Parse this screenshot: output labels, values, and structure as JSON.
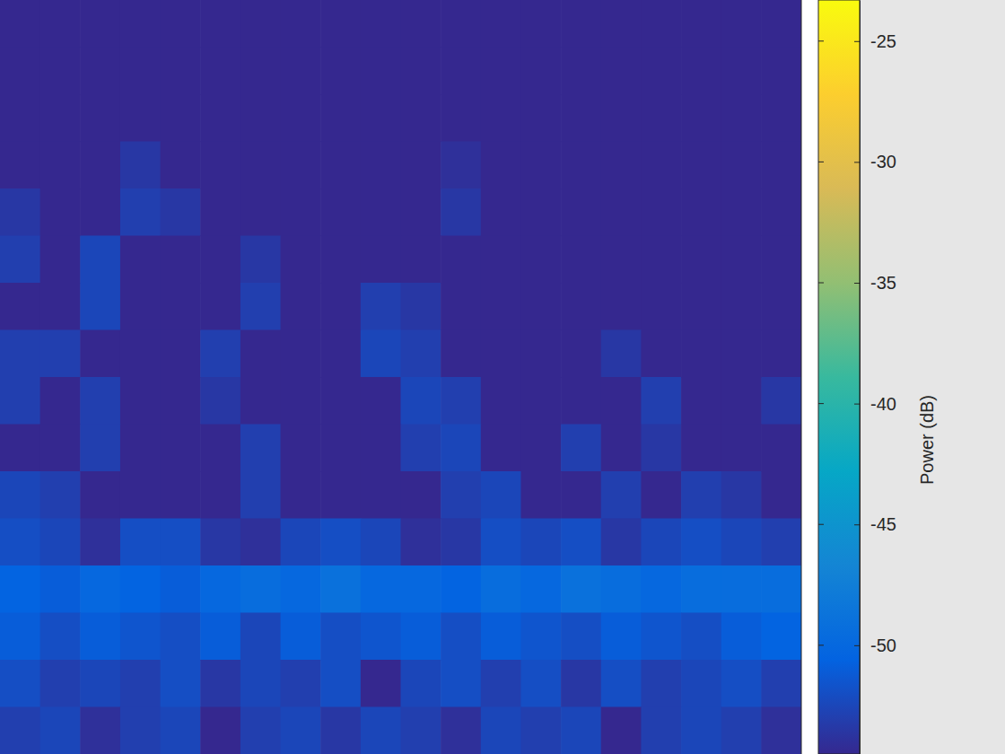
{
  "chart_data": {
    "type": "heatmap",
    "tick_labels": false,
    "colorbar": {
      "label": "Power (dB)",
      "range": [
        -54.5,
        -23.3
      ],
      "ticks": [
        -25,
        -30,
        -35,
        -40,
        -45,
        -50
      ]
    },
    "z": [
      [
        -54.5,
        -54.5,
        -54.5,
        -54.5,
        -54.5,
        -54.5,
        -54.5,
        -54.5,
        -54.5,
        -54.5,
        -54.5,
        -54.5,
        -54.5,
        -54.5,
        -54.5,
        -54.5,
        -54.5,
        -54.5,
        -54.5,
        -54.5
      ],
      [
        -54.5,
        -54.5,
        -54.5,
        -54.5,
        -54.5,
        -54.5,
        -54.5,
        -54.5,
        -54.5,
        -54.5,
        -54.5,
        -54.5,
        -54.5,
        -54.5,
        -54.5,
        -54.5,
        -54.5,
        -54.5,
        -54.5,
        -54.5
      ],
      [
        -54.5,
        -54.5,
        -54.5,
        -54.5,
        -54.5,
        -54.5,
        -54.5,
        -54.5,
        -54.5,
        -54.5,
        -54.5,
        -54.5,
        -54.5,
        -54.5,
        -54.5,
        -54.5,
        -54.5,
        -54.5,
        -54.5,
        -54.5
      ],
      [
        -54.5,
        -54.5,
        -54.5,
        -53.5,
        -54.5,
        -54.5,
        -54.5,
        -54.5,
        -54.5,
        -54.5,
        -54.5,
        -54,
        -54.5,
        -54.5,
        -54.5,
        -54.5,
        -54.5,
        -54.5,
        -54.5,
        -54.5
      ],
      [
        -53.5,
        -54.5,
        -54.5,
        -53,
        -53.5,
        -54.5,
        -54.5,
        -54.5,
        -54.5,
        -54.5,
        -54.5,
        -53.5,
        -54.5,
        -54.5,
        -54.5,
        -54.5,
        -54.5,
        -54.5,
        -54.5,
        -54.5
      ],
      [
        -53,
        -54.5,
        -52.5,
        -54.5,
        -54.5,
        -54.5,
        -53.5,
        -54.5,
        -54.5,
        -54.5,
        -54.5,
        -54.5,
        -54.5,
        -54.5,
        -54.5,
        -54.5,
        -54.5,
        -54.5,
        -54.5,
        -54.5
      ],
      [
        -54.5,
        -54.5,
        -52.5,
        -54.5,
        -54.5,
        -54.5,
        -53,
        -54.5,
        -54.5,
        -53,
        -53.5,
        -54.5,
        -54.5,
        -54.5,
        -54.5,
        -54.5,
        -54.5,
        -54.5,
        -54.5,
        -54.5
      ],
      [
        -53,
        -53,
        -54.5,
        -54.5,
        -54.5,
        -53,
        -54.5,
        -54.5,
        -54.5,
        -52.5,
        -53,
        -54.5,
        -54.5,
        -54.5,
        -54.5,
        -53.5,
        -54.5,
        -54.5,
        -54.5,
        -54.5
      ],
      [
        -53,
        -54.5,
        -53,
        -54.5,
        -54.5,
        -53.5,
        -54.5,
        -54.5,
        -54.5,
        -54.5,
        -52.5,
        -53,
        -54.5,
        -54.5,
        -54.5,
        -54.5,
        -53,
        -54.5,
        -54.5,
        -53.5
      ],
      [
        -54.5,
        -54.5,
        -53,
        -54.5,
        -54.5,
        -54.5,
        -53,
        -54.5,
        -54.5,
        -54.5,
        -53,
        -52.5,
        -54.5,
        -54.5,
        -53,
        -54.5,
        -53.5,
        -54.5,
        -54.5,
        -54.5
      ],
      [
        -52.5,
        -53,
        -54.5,
        -54.5,
        -54.5,
        -54.5,
        -53,
        -54.5,
        -54.5,
        -54.5,
        -54.5,
        -53,
        -52.5,
        -54.5,
        -54.5,
        -53,
        -54.5,
        -53,
        -53.5,
        -54.5
      ],
      [
        -52,
        -52.5,
        -54,
        -52,
        -52,
        -53.5,
        -54,
        -52.5,
        -52,
        -52.5,
        -54,
        -53.5,
        -52,
        -52.5,
        -52,
        -53.5,
        -52.5,
        -52,
        -52.5,
        -53
      ],
      [
        -50.5,
        -51,
        -50,
        -50.5,
        -51,
        -50,
        -49.5,
        -50,
        -49,
        -50,
        -50,
        -50.5,
        -49.5,
        -50,
        -49,
        -49.5,
        -50,
        -49.5,
        -49.5,
        -49.5
      ],
      [
        -51,
        -52,
        -51,
        -51.5,
        -52,
        -51,
        -52.5,
        -51,
        -52,
        -51.5,
        -51,
        -52,
        -51,
        -51.5,
        -52,
        -51,
        -51.5,
        -52,
        -51,
        -50.5
      ],
      [
        -52,
        -53,
        -52.5,
        -53,
        -52,
        -53.5,
        -52.5,
        -53,
        -52,
        -54.5,
        -52.5,
        -52,
        -53,
        -52,
        -53.5,
        -52,
        -53,
        -52.5,
        -52,
        -53
      ],
      [
        -53,
        -52.5,
        -54,
        -53,
        -52.5,
        -54.5,
        -53,
        -52.5,
        -53.5,
        -52.5,
        -53,
        -54,
        -52.5,
        -53,
        -52.5,
        -54.5,
        -53,
        -52.5,
        -53,
        -54
      ]
    ]
  }
}
